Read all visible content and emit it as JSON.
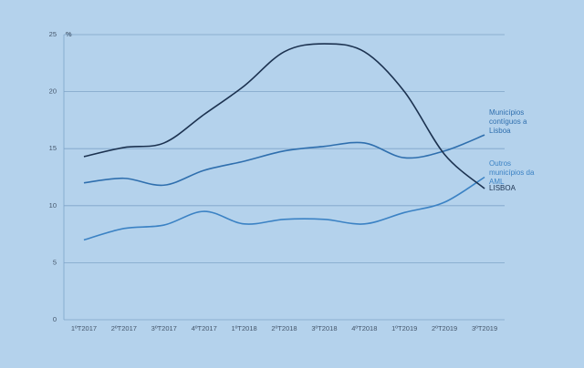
{
  "chart_data": {
    "type": "line",
    "y_label": "%",
    "categories": [
      "1ºT2017",
      "2ºT2017",
      "3ºT2017",
      "4ºT2017",
      "1ºT2018",
      "2ºT2018",
      "3ºT2018",
      "4ºT2018",
      "1ºT2019",
      "2ºT2019",
      "3ºT2019"
    ],
    "series": [
      {
        "name": "Municípios contíguos a Lisboa",
        "color": "#2f6fae",
        "values": [
          12,
          12.4,
          11.8,
          13.1,
          13.9,
          14.8,
          15.2,
          15.5,
          14.2,
          14.8,
          16.2
        ]
      },
      {
        "name": "Outros municípios da AML",
        "color": "#3b82c4",
        "values": [
          7,
          8,
          8.3,
          9.5,
          8.4,
          8.8,
          8.8,
          8.4,
          9.4,
          10.3,
          12.5
        ]
      },
      {
        "name": "LISBOA",
        "color": "#1c3250",
        "values": [
          14.3,
          15.1,
          15.5,
          18,
          20.5,
          23.5,
          24.2,
          23.5,
          20,
          14.5,
          11.5
        ]
      }
    ],
    "ylim": [
      0,
      25
    ],
    "yticks": [
      0,
      5,
      10,
      15,
      20,
      25
    ],
    "grid": true
  }
}
